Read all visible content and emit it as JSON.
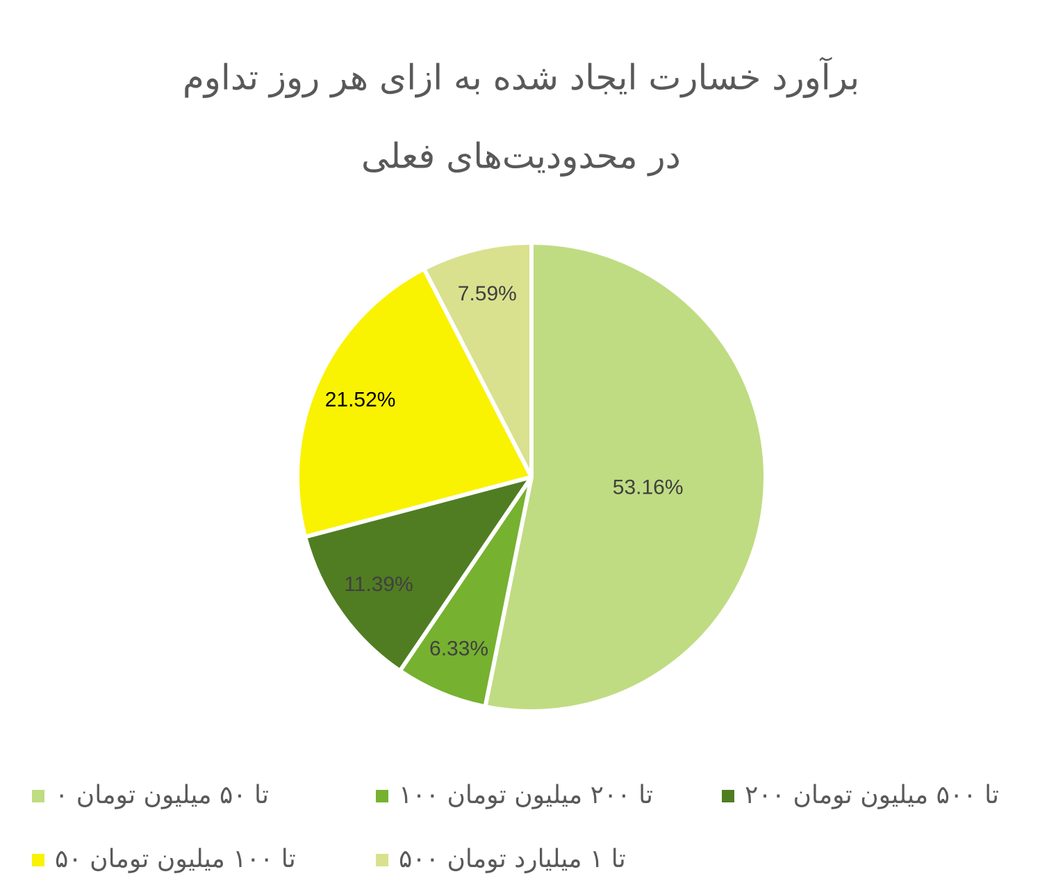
{
  "chart_data": {
    "type": "pie",
    "title": [
      "برآورد خسارت ایجاد شده به ازای هر روز تداوم",
      "در محدودیت‌های فعلی"
    ],
    "categories": [
      "۰ تا ۵۰ میلیون تومان",
      "۱۰۰ تا ۲۰۰ میلیون تومان",
      "۲۰۰ تا ۵۰۰ میلیون تومان",
      "۵۰ تا ۱۰۰ میلیون تومان",
      "۵۰۰ تا ۱ میلیارد تومان"
    ],
    "values": [
      53.16,
      6.33,
      11.39,
      21.52,
      7.59
    ],
    "value_labels": [
      "53.16%",
      "6.33%",
      "11.39%",
      "21.52%",
      "7.59%"
    ],
    "colors": [
      "#bfdc82",
      "#76b130",
      "#507d22",
      "#f9f200",
      "#d9e18e"
    ],
    "label_colors": [
      "#404040",
      "#404040",
      "#404040",
      "#000000",
      "#404040"
    ],
    "legend": "bottom"
  }
}
